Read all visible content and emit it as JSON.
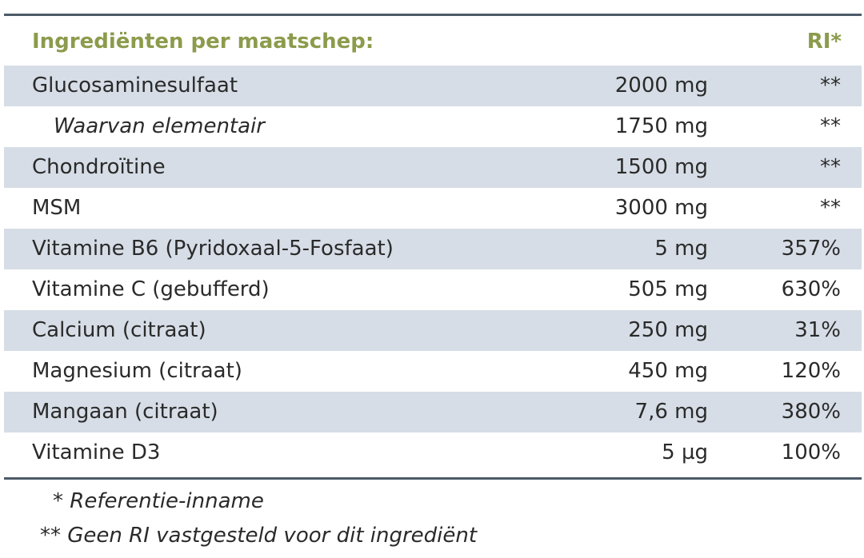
{
  "table": {
    "header": [
      "Ingrediënten per maatschep:",
      "RI*"
    ],
    "rows": [
      [
        "Glucosaminesulfaat",
        "2000 mg",
        "**"
      ],
      [
        "Waarvan elementair",
        "1750 mg",
        "**"
      ],
      [
        "Chondroïtine",
        "1500 mg",
        "**"
      ],
      [
        "MSM",
        "3000 mg",
        "**"
      ],
      [
        "Vitamine B6 (Pyridoxaal-5-Fosfaat)",
        "5 mg",
        "357%"
      ],
      [
        "Vitamine C (gebufferd)",
        "505 mg",
        "630%"
      ],
      [
        "Calcium (citraat)",
        "250 mg",
        "31%"
      ],
      [
        "Magnesium (citraat)",
        "450 mg",
        "120%"
      ],
      [
        "Mangaan (citraat)",
        "7,6 mg",
        "380%"
      ],
      [
        "Vitamine D3",
        "5 µg",
        "100%"
      ]
    ]
  },
  "footnotes": [
    "* Referentie-inname",
    "** Geen RI vastgesteld voor dit ingrediënt"
  ]
}
